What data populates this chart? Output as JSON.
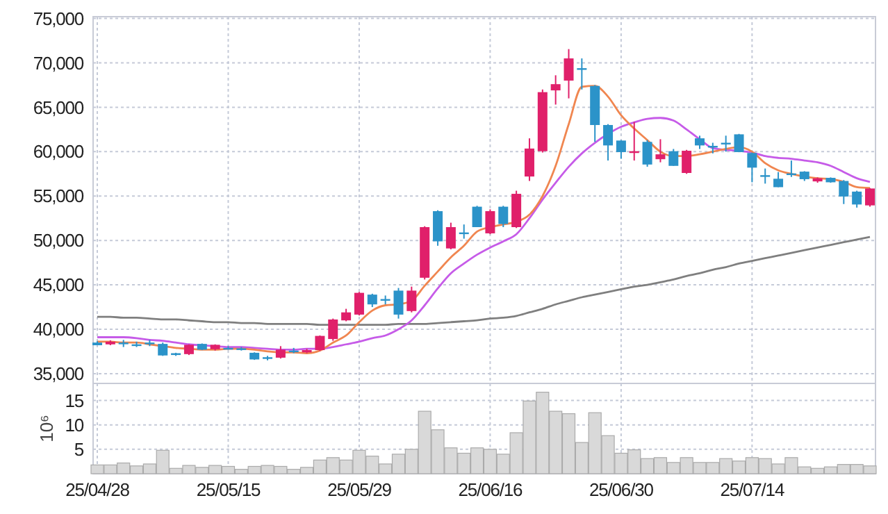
{
  "chart_data": [
    {
      "type": "candlestick",
      "categories": [
        null,
        null,
        null,
        null,
        null,
        null,
        null,
        null,
        null,
        null,
        null,
        null,
        null,
        null,
        null,
        null,
        null,
        null,
        null,
        null,
        null,
        null,
        null,
        null,
        null,
        null,
        null,
        null,
        null,
        null,
        null,
        null,
        null,
        null,
        null,
        null,
        null,
        null,
        null,
        null,
        null,
        null,
        null,
        null,
        null,
        null,
        null,
        null,
        null,
        null,
        null,
        null,
        null,
        null,
        null,
        null,
        null,
        null,
        null,
        null
      ],
      "ohlc": [
        [
          38500,
          38650,
          38200,
          38200
        ],
        [
          38300,
          38750,
          38200,
          38600
        ],
        [
          38500,
          38800,
          38000,
          38450
        ],
        [
          38300,
          38600,
          38000,
          38250
        ],
        [
          38500,
          38800,
          38100,
          38450
        ],
        [
          38350,
          38500,
          37000,
          37050
        ],
        [
          37300,
          37350,
          37000,
          37100
        ],
        [
          37200,
          38300,
          37100,
          38250
        ],
        [
          38350,
          38400,
          37650,
          37700
        ],
        [
          37750,
          38300,
          37600,
          38250
        ],
        [
          37900,
          38100,
          37700,
          37850
        ],
        [
          37850,
          38000,
          37600,
          37800
        ],
        [
          37350,
          37400,
          36550,
          36600
        ],
        [
          36850,
          37000,
          36500,
          36800
        ],
        [
          36800,
          38100,
          36700,
          37700
        ],
        [
          37600,
          37900,
          37300,
          37550
        ],
        [
          37400,
          37800,
          37300,
          37650
        ],
        [
          37650,
          39300,
          37550,
          39250
        ],
        [
          38900,
          41200,
          38700,
          41100
        ],
        [
          41000,
          42300,
          40900,
          41900
        ],
        [
          41650,
          44200,
          41550,
          44100
        ],
        [
          43900,
          44000,
          42500,
          42800
        ],
        [
          43400,
          43800,
          42800,
          43300
        ],
        [
          44350,
          44650,
          41200,
          41650
        ],
        [
          42050,
          44800,
          41900,
          44350
        ],
        [
          45800,
          51600,
          45600,
          51500
        ],
        [
          53300,
          53400,
          49400,
          49900
        ],
        [
          49100,
          52000,
          49000,
          51500
        ],
        [
          50900,
          51800,
          50200,
          50800
        ],
        [
          53800,
          53900,
          51500,
          51500
        ],
        [
          50800,
          53500,
          50700,
          53300
        ],
        [
          53800,
          53900,
          51500,
          51850
        ],
        [
          51500,
          55600,
          51400,
          55250
        ],
        [
          57200,
          61500,
          56700,
          60350
        ],
        [
          60050,
          67000,
          59900,
          66700
        ],
        [
          66900,
          68600,
          65300,
          67600
        ],
        [
          68000,
          71550,
          66000,
          70500
        ],
        [
          69400,
          70500,
          67000,
          69300
        ],
        [
          67400,
          67500,
          61100,
          63000
        ],
        [
          63000,
          63100,
          59000,
          60700
        ],
        [
          61250,
          61300,
          59200,
          59950
        ],
        [
          59850,
          63350,
          59000,
          60050
        ],
        [
          61100,
          61300,
          58300,
          58550
        ],
        [
          59150,
          61400,
          58800,
          59700
        ],
        [
          60050,
          60300,
          58400,
          58400
        ],
        [
          57600,
          60200,
          57500,
          60100
        ],
        [
          61500,
          61800,
          60300,
          60700
        ],
        [
          60650,
          61000,
          59800,
          60600
        ],
        [
          61000,
          61800,
          60000,
          60950
        ],
        [
          61950,
          62000,
          59950,
          59950
        ],
        [
          59850,
          59900,
          56550,
          58200
        ],
        [
          57350,
          58100,
          56400,
          57300
        ],
        [
          56950,
          57700,
          56000,
          56000
        ],
        [
          57550,
          59000,
          57150,
          57500
        ],
        [
          57750,
          57800,
          56700,
          56900
        ],
        [
          56650,
          57100,
          56500,
          57000
        ],
        [
          57050,
          57100,
          56500,
          56550
        ],
        [
          56700,
          56800,
          54100,
          54950
        ],
        [
          55500,
          55600,
          53700,
          54050
        ],
        [
          53950,
          55900,
          53800,
          55850
        ]
      ],
      "colors": [
        "#2b93c9",
        "#e0206a",
        "#2b93c9",
        "#2b93c9",
        "#2b93c9",
        "#2b93c9",
        "#2b93c9",
        "#e0206a",
        "#2b93c9",
        "#e0206a",
        "#2b93c9",
        "#2b93c9",
        "#2b93c9",
        "#2b93c9",
        "#e0206a",
        "#2b93c9",
        "#e0206a",
        "#e0206a",
        "#e0206a",
        "#e0206a",
        "#e0206a",
        "#2b93c9",
        "#2b93c9",
        "#2b93c9",
        "#e0206a",
        "#e0206a",
        "#2b93c9",
        "#e0206a",
        "#2b93c9",
        "#2b93c9",
        "#e0206a",
        "#2b93c9",
        "#e0206a",
        "#e0206a",
        "#e0206a",
        "#e0206a",
        "#e0206a",
        "#2b93c9",
        "#2b93c9",
        "#2b93c9",
        "#2b93c9",
        "#e0206a",
        "#2b93c9",
        "#e0206a",
        "#2b93c9",
        "#e0206a",
        "#2b93c9",
        "#2b93c9",
        "#2b93c9",
        "#2b93c9",
        "#2b93c9",
        "#2b93c9",
        "#2b93c9",
        "#2b93c9",
        "#2b93c9",
        "#e0206a",
        "#2b93c9",
        "#2b93c9",
        "#2b93c9",
        "#e0206a"
      ],
      "series": [
        {
          "type": "line",
          "color": "#7f7f7f",
          "values": [
            41400,
            41400,
            41300,
            41300,
            41200,
            41100,
            41100,
            41000,
            40900,
            40800,
            40800,
            40700,
            40700,
            40600,
            40600,
            40600,
            40600,
            40500,
            40500,
            40500,
            40500,
            40500,
            40500,
            40600,
            40600,
            40600,
            40700,
            40800,
            40900,
            41000,
            41200,
            41300,
            41500,
            41900,
            42300,
            42800,
            43200,
            43600,
            43900,
            44200,
            44500,
            44800,
            45000,
            45300,
            45600,
            46000,
            46300,
            46700,
            47000,
            47400,
            47700,
            48000,
            48300,
            48600,
            48900,
            49200,
            49500,
            49800,
            50100,
            50400
          ]
        },
        {
          "type": "line",
          "color": "#c65be8",
          "values": [
            39100,
            39100,
            39100,
            39000,
            38800,
            38700,
            38500,
            38300,
            38200,
            38100,
            38000,
            38000,
            37900,
            37800,
            37700,
            37700,
            37800,
            37800,
            38000,
            38300,
            38600,
            39000,
            39300,
            40000,
            41000,
            42700,
            44600,
            46300,
            47400,
            48400,
            49200,
            49900,
            50700,
            52500,
            54600,
            56500,
            58300,
            59800,
            61000,
            62000,
            62800,
            63300,
            63700,
            63800,
            63500,
            62500,
            61400,
            60400,
            60200,
            60100,
            59900,
            59500,
            59300,
            59200,
            59000,
            58800,
            58400,
            57700,
            57000,
            56600
          ]
        },
        {
          "type": "line",
          "color": "#f08650",
          "values": [
            38600,
            38600,
            38500,
            38500,
            38300,
            38100,
            37900,
            37800,
            37700,
            37700,
            37800,
            37800,
            37700,
            37500,
            37400,
            37400,
            37300,
            37600,
            38500,
            39300,
            40800,
            42100,
            42700,
            42800,
            43200,
            44900,
            46500,
            48100,
            49400,
            51000,
            51500,
            51800,
            52100,
            52900,
            55000,
            58400,
            63100,
            67300,
            67400,
            66200,
            64100,
            62600,
            61300,
            60000,
            59500,
            59500,
            59700,
            60000,
            60300,
            60500,
            60000,
            58700,
            57900,
            57500,
            57200,
            57000,
            56900,
            56600,
            56000,
            55900
          ]
        }
      ],
      "ylim": [
        33900,
        75200
      ],
      "yticks": [
        {
          "value": 35000,
          "label": "35,000"
        },
        {
          "value": 40000,
          "label": "40,000"
        },
        {
          "value": 45000,
          "label": "45,000"
        },
        {
          "value": 50000,
          "label": "50,000"
        },
        {
          "value": 55000,
          "label": "55,000"
        },
        {
          "value": 60000,
          "label": "60,000"
        },
        {
          "value": 65000,
          "label": "65,000"
        },
        {
          "value": 70000,
          "label": "70,000"
        },
        {
          "value": 75000,
          "label": "75,000"
        }
      ],
      "grid": true,
      "tick_labels": "y"
    },
    {
      "type": "bar",
      "categories": [
        "25/04/28",
        null,
        null,
        null,
        null,
        null,
        null,
        null,
        null,
        null,
        "25/05/15",
        null,
        null,
        null,
        null,
        null,
        null,
        null,
        null,
        null,
        "25/05/29",
        null,
        null,
        null,
        null,
        null,
        null,
        null,
        null,
        null,
        "25/06/16",
        null,
        null,
        null,
        null,
        null,
        null,
        null,
        null,
        null,
        "25/06/30",
        null,
        null,
        null,
        null,
        null,
        null,
        null,
        null,
        null,
        "25/07/14",
        null,
        null,
        null,
        null,
        null,
        null,
        null,
        null,
        null
      ],
      "values": [
        1.8,
        1.8,
        2.2,
        1.6,
        2.0,
        4.8,
        1.1,
        1.7,
        1.3,
        1.7,
        1.5,
        0.9,
        1.5,
        1.7,
        1.5,
        0.9,
        1.3,
        2.8,
        3.3,
        2.8,
        4.8,
        3.6,
        2.0,
        4.0,
        5.0,
        12.8,
        9.0,
        5.3,
        4.2,
        5.3,
        5.0,
        4.0,
        8.4,
        14.9,
        16.7,
        12.8,
        12.3,
        6.4,
        12.5,
        7.8,
        4.2,
        4.9,
        3.1,
        3.3,
        2.3,
        3.3,
        2.3,
        2.3,
        3.1,
        2.6,
        3.3,
        3.1,
        2.0,
        3.3,
        1.4,
        1.1,
        1.4,
        1.9,
        1.9,
        1.6
      ],
      "color": "#d9d9d9",
      "ylabel": "10⁶",
      "ylim": [
        0,
        18.5
      ],
      "yticks": [
        5,
        10,
        15
      ],
      "grid": true
    }
  ]
}
